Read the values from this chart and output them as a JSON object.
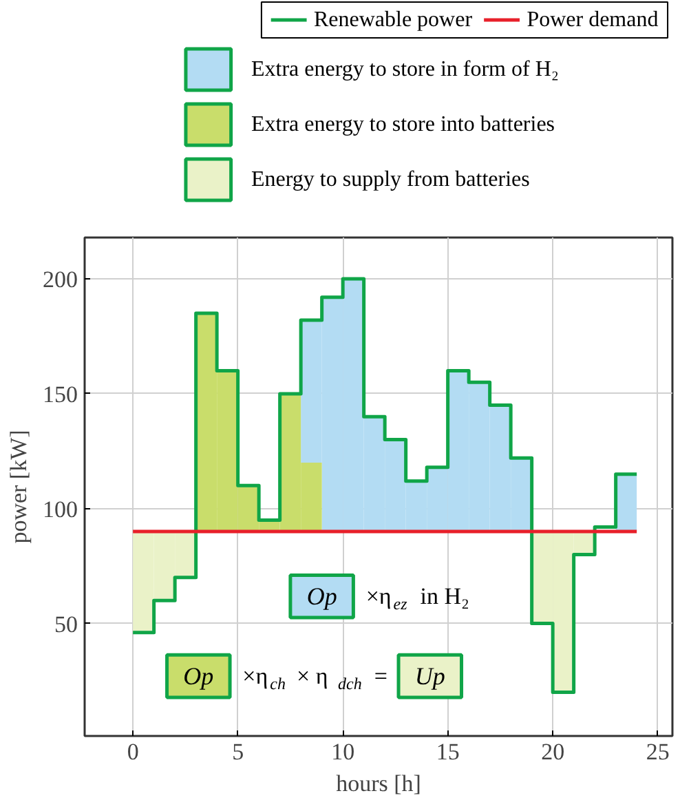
{
  "chart_data": {
    "type": "step",
    "xlabel": "hours [h]",
    "ylabel": "power [kW]",
    "xlim": [
      -2.3,
      25.7
    ],
    "ylim": [
      1,
      218
    ],
    "xticks": [
      0,
      5,
      10,
      15,
      20,
      25
    ],
    "yticks": [
      50,
      100,
      150,
      200
    ],
    "grid": true,
    "legend": "top",
    "series": [
      {
        "name": "Extra energy to store in form of H₂",
        "type": "bar",
        "color": "#b3dcf3",
        "x": [
          8.5,
          9.5,
          10.5,
          11.5,
          12.5,
          13.5,
          14.5,
          15.5,
          16.5,
          17.5,
          18.5,
          23.5
        ],
        "base": [
          120,
          90,
          90,
          90,
          90,
          90,
          90,
          90,
          90,
          90,
          90,
          90
        ],
        "values": [
          62,
          102,
          110,
          50,
          40,
          22,
          28,
          70,
          65,
          55,
          32,
          25
        ]
      },
      {
        "name": "Extra energy to store into batteries",
        "type": "bar",
        "color": "#c9dd6b",
        "x": [
          3.5,
          4.5,
          5.5,
          6.5,
          7.5,
          8.5
        ],
        "base": [
          90,
          90,
          90,
          90,
          90,
          90
        ],
        "values": [
          95,
          70,
          20,
          5,
          60,
          30
        ]
      },
      {
        "name": "Energy to supply from batteries",
        "type": "bar",
        "color": "#eaf2c8",
        "x": [
          0.5,
          1.5,
          2.5,
          19.5,
          20.5,
          21.5
        ],
        "base": [
          46,
          60,
          70,
          50,
          20,
          80
        ],
        "values": [
          44,
          30,
          20,
          40,
          70,
          10
        ]
      },
      {
        "name": "Renewable power",
        "color": "#10a548",
        "x": [
          0,
          1,
          2,
          3,
          4,
          5,
          6,
          7,
          8,
          9,
          10,
          11,
          12,
          13,
          14,
          15,
          16,
          17,
          18,
          19,
          20,
          21,
          22,
          23,
          24
        ],
        "values": [
          46,
          60,
          70,
          185,
          160,
          110,
          95,
          150,
          182,
          192,
          200,
          140,
          130,
          112,
          118,
          160,
          155,
          145,
          122,
          50,
          20,
          80,
          92,
          115,
          115
        ]
      },
      {
        "name": "Power demand",
        "type": "line",
        "color": "#e8202a",
        "x": [
          0,
          24
        ],
        "values": [
          90,
          90
        ]
      }
    ],
    "annotations": [
      "Op",
      "×η$_{ez}$ in H₂",
      "Op",
      "×η$_{ch}$ × η$_{dch}$ =",
      "Up"
    ]
  }
}
